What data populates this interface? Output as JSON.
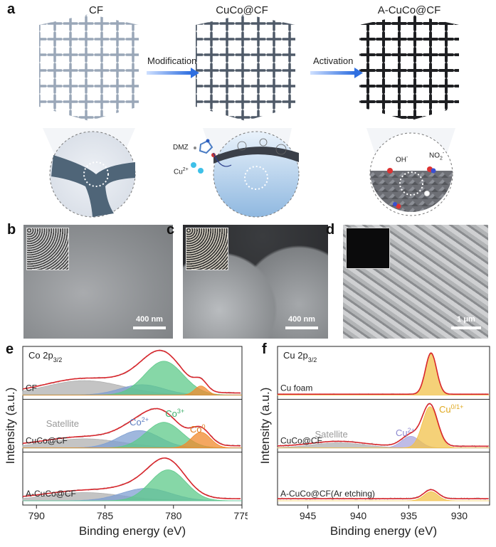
{
  "panel_a": {
    "letter": "a",
    "stage_titles": [
      "CF",
      "CuCo@CF",
      "A-CuCo@CF"
    ],
    "arrow1": "Modification",
    "arrow2": "Activation",
    "dmz": "DMZ",
    "cu2": "Cu",
    "cu2_sup": "2+",
    "oh": "OH",
    "oh_sup": "-",
    "no2": "NO",
    "no2_sub": "2",
    "no2_sup": "-"
  },
  "panel_b": {
    "letter": "b",
    "scale": "400 nm"
  },
  "panel_c": {
    "letter": "c",
    "scale": "400 nm"
  },
  "panel_d": {
    "letter": "d",
    "scale": "1 μm"
  },
  "panel_e": {
    "letter": "e"
  },
  "panel_f": {
    "letter": "f"
  },
  "colors": {
    "fit_red": "#d8262c",
    "co3": "#5ec98a",
    "co2": "#7f9fd2",
    "co0": "#f08a2c",
    "satellite": "#b0b0b0",
    "cu01": "#f2c14b",
    "cu2": "#a9a6de"
  },
  "chart_data": [
    {
      "type": "line",
      "panel": "e",
      "title": "Co 2p3/2",
      "xlabel": "Binding energy (eV)",
      "ylabel": "Intensity (a.u.)",
      "xlim": [
        791,
        775
      ],
      "xticks": [
        790,
        785,
        780,
        775
      ],
      "series": [
        {
          "name": "CF"
        },
        {
          "name": "CuCo@CF"
        },
        {
          "name": "A-CuCo@CF"
        }
      ],
      "peaks": [
        {
          "name": "Satellite",
          "x": 786.5
        },
        {
          "name": "Co2+",
          "x": 782.3
        },
        {
          "name": "Co3+",
          "x": 780.8
        },
        {
          "name": "Co0",
          "x": 778.0
        }
      ],
      "annotations": [
        "Satellite",
        "Co2+",
        "Co3+",
        "Co0"
      ]
    },
    {
      "type": "line",
      "panel": "f",
      "title": "Cu 2p3/2",
      "xlabel": "Binding energy (eV)",
      "ylabel": "Intensity (a.u.)",
      "xlim": [
        948,
        927
      ],
      "xticks": [
        945,
        940,
        935,
        930
      ],
      "series": [
        {
          "name": "Cu foam"
        },
        {
          "name": "CuCo@CF"
        },
        {
          "name": "A-CuCo@CF(Ar etching)"
        }
      ],
      "peaks": [
        {
          "name": "Satellite",
          "x": 942.0
        },
        {
          "name": "Cu2+",
          "x": 934.8
        },
        {
          "name": "Cu0/1+",
          "x": 932.8
        }
      ],
      "annotations": [
        "Satellite",
        "Cu2+",
        "Cu0/1+"
      ]
    }
  ]
}
